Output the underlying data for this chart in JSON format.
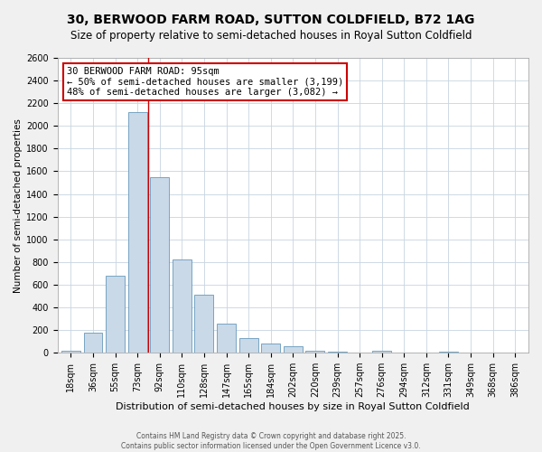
{
  "title": "30, BERWOOD FARM ROAD, SUTTON COLDFIELD, B72 1AG",
  "subtitle": "Size of property relative to semi-detached houses in Royal Sutton Coldfield",
  "xlabel": "Distribution of semi-detached houses by size in Royal Sutton Coldfield",
  "ylabel": "Number of semi-detached properties",
  "categories": [
    "18sqm",
    "36sqm",
    "55sqm",
    "73sqm",
    "92sqm",
    "110sqm",
    "128sqm",
    "147sqm",
    "165sqm",
    "184sqm",
    "202sqm",
    "220sqm",
    "239sqm",
    "257sqm",
    "276sqm",
    "294sqm",
    "312sqm",
    "331sqm",
    "349sqm",
    "368sqm",
    "386sqm"
  ],
  "values": [
    15,
    180,
    680,
    2120,
    1550,
    820,
    510,
    255,
    130,
    80,
    55,
    20,
    10,
    0,
    15,
    0,
    0,
    10,
    0,
    0,
    0
  ],
  "bar_color": "#c9d9e8",
  "bar_edge_color": "#6699bb",
  "property_label": "30 BERWOOD FARM ROAD: 95sqm",
  "annotation_line1": "← 50% of semi-detached houses are smaller (3,199)",
  "annotation_line2": "48% of semi-detached houses are larger (3,082) →",
  "red_line_x": 3.5,
  "annotation_box_color": "#ffffff",
  "annotation_box_edge_color": "#cc0000",
  "ylim": [
    0,
    2600
  ],
  "yticks": [
    0,
    200,
    400,
    600,
    800,
    1000,
    1200,
    1400,
    1600,
    1800,
    2000,
    2200,
    2400,
    2600
  ],
  "footer_line1": "Contains HM Land Registry data © Crown copyright and database right 2025.",
  "footer_line2": "Contains public sector information licensed under the Open Government Licence v3.0.",
  "title_fontsize": 10,
  "subtitle_fontsize": 8.5,
  "xlabel_fontsize": 8,
  "ylabel_fontsize": 7.5,
  "tick_fontsize": 7,
  "annotation_fontsize": 7.5,
  "background_color": "#f0f0f0",
  "plot_bg_color": "#ffffff",
  "grid_color": "#c8d4e0"
}
